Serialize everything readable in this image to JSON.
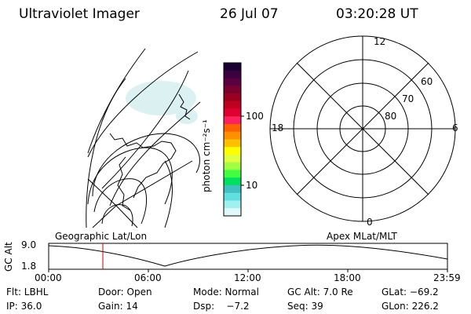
{
  "header": {
    "instrument": "Ultraviolet Imager",
    "date": "26 Jul 07",
    "time": "03:20:28 UT"
  },
  "colorbar": {
    "unit_label": "photon cm⁻²s⁻¹",
    "ticks": [
      "100",
      "10"
    ],
    "colors": [
      "#1a0033",
      "#3a0040",
      "#5a0040",
      "#7a0030",
      "#9a0020",
      "#c00020",
      "#e00030",
      "#ff2060",
      "#ff6000",
      "#ff9000",
      "#ffc000",
      "#ffff00",
      "#e0ff40",
      "#a0ff40",
      "#40ff40",
      "#00e060",
      "#40c0c0",
      "#60e0e0",
      "#a0f0f0",
      "#e0f8f8"
    ]
  },
  "left_panel": {
    "label": "Geographic Lat/Lon"
  },
  "right_panel": {
    "label": "Apex MLat/MLT",
    "mlt_labels": {
      "top": "12",
      "left": "18",
      "right": "6",
      "bottom": "0"
    },
    "lat_labels": [
      "60",
      "70",
      "80"
    ]
  },
  "timeline": {
    "ylabel": "GC Alt",
    "ytick_top": "9.0",
    "ytick_bottom": "1.8",
    "xticks": [
      "00:00",
      "06:00",
      "12:00",
      "18:00",
      "23:59"
    ],
    "marker_color": "#cc0000"
  },
  "info": {
    "flt": "Flt: LBHL",
    "door": "Door: Open",
    "mode": "Mode: Normal",
    "gcalt": "GC Alt: 7.0 Re",
    "glat": "GLat: −69.2",
    "ip": "IP: 36.0",
    "gain": "Gain: 14",
    "dsp": "Dsp:    −7.2",
    "seq": "Seq: 39",
    "glon": "GLon: 226.2"
  }
}
